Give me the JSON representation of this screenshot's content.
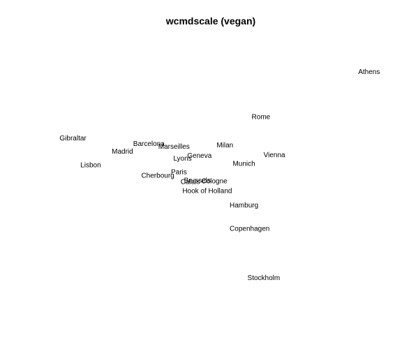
{
  "chart_data": {
    "type": "scatter",
    "title": "wcmdscale (vegan)",
    "xlabel": "",
    "ylabel": "",
    "axes_visible": false,
    "grid": false,
    "legend": "none",
    "marker": "text-label",
    "x_range": [
      -2350,
      2450
    ],
    "y_range": [
      -1960,
      1860
    ],
    "text_color": "#000000",
    "points": [
      {
        "label": "Athens",
        "x": 2290,
        "y": 1420
      },
      {
        "label": "Barcelona",
        "x": -826,
        "y": 400
      },
      {
        "label": "Brussels",
        "x": -140,
        "y": -120
      },
      {
        "label": "Calais",
        "x": -240,
        "y": -140
      },
      {
        "label": "Cherbourg",
        "x": -700,
        "y": -50
      },
      {
        "label": "Cologne",
        "x": 100,
        "y": -130
      },
      {
        "label": "Copenhagen",
        "x": 600,
        "y": -800
      },
      {
        "label": "Geneva",
        "x": -110,
        "y": 230
      },
      {
        "label": "Gibraltar",
        "x": -1900,
        "y": 480
      },
      {
        "label": "Hamburg",
        "x": 520,
        "y": -470
      },
      {
        "label": "Hook of Holland",
        "x": 0,
        "y": -270
      },
      {
        "label": "Lisbon",
        "x": -1650,
        "y": 100
      },
      {
        "label": "Lyons",
        "x": -350,
        "y": 190
      },
      {
        "label": "Madrid",
        "x": -1200,
        "y": 290
      },
      {
        "label": "Marseilles",
        "x": -470,
        "y": 360
      },
      {
        "label": "Milan",
        "x": 250,
        "y": 380
      },
      {
        "label": "Munich",
        "x": 520,
        "y": 120
      },
      {
        "label": "Paris",
        "x": -400,
        "y": 0
      },
      {
        "label": "Rome",
        "x": 760,
        "y": 780
      },
      {
        "label": "Stockholm",
        "x": 800,
        "y": -1500
      },
      {
        "label": "Vienna",
        "x": 950,
        "y": 240
      }
    ]
  }
}
